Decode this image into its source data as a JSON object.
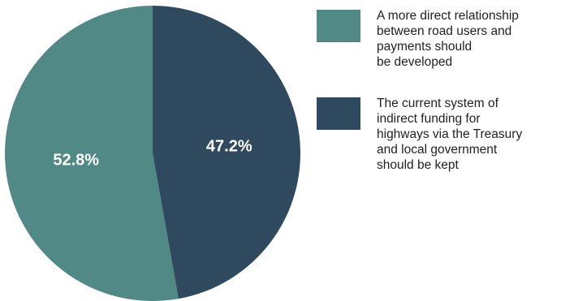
{
  "chart_data": {
    "type": "pie",
    "title": "",
    "slices": [
      {
        "label": "The current system of indirect funding for highways via the Treasury and local government should be kept",
        "legend_text": "The current system of\nindirect funding for\nhighways via the Treasury\nand local government\nshould be kept",
        "value": 47.2,
        "value_label": "47.2%",
        "color": "#2f4a5e"
      },
      {
        "label": "A more direct relationship between road users and payments should be developed",
        "legend_text": "A more direct relationship\nbetween road users and\npayments should\nbe developed",
        "value": 52.8,
        "value_label": "52.8%",
        "color": "#508985"
      }
    ],
    "start_angle_deg": 0,
    "direction": "clockwise",
    "legend_position": "right",
    "legend_order": [
      1,
      0
    ]
  }
}
